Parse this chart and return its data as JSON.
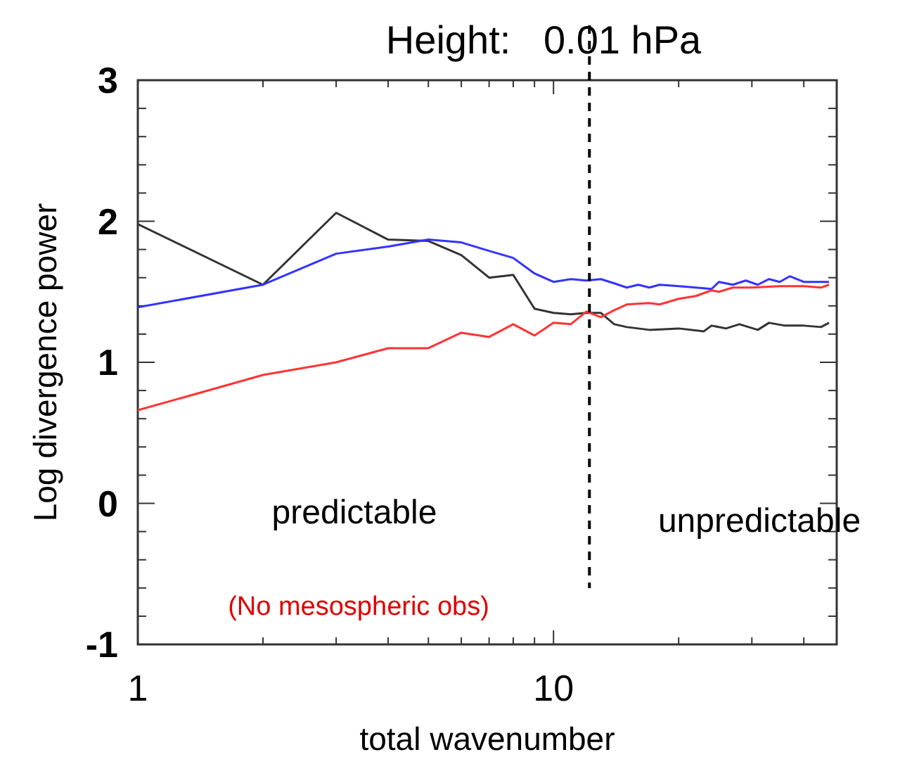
{
  "chart_data": {
    "type": "line",
    "title": "Height:   0.01 hPa",
    "xlabel": "total wavenumber",
    "ylabel": "Log divergence power",
    "log": "x",
    "grid": false,
    "marker": "none",
    "line_style": "solid",
    "xlim": [
      1,
      48
    ],
    "xticks": [
      1,
      {
        "value": 2,
        "label": null
      },
      {
        "value": 3,
        "label": null
      },
      {
        "value": 4,
        "label": null
      },
      {
        "value": 5,
        "label": null
      },
      {
        "value": 6,
        "label": null
      },
      {
        "value": 7,
        "label": null
      },
      {
        "value": 8,
        "label": null
      },
      {
        "value": 9,
        "label": null
      },
      10,
      {
        "value": 20,
        "label": null
      },
      {
        "value": 30,
        "label": null
      },
      {
        "value": 40,
        "label": null
      }
    ],
    "ylim": [
      -1,
      3
    ],
    "yticks": [
      -1,
      {
        "value": -0.8,
        "label": null
      },
      {
        "value": -0.6,
        "label": null
      },
      {
        "value": -0.4,
        "label": null
      },
      {
        "value": -0.2,
        "label": null
      },
      0,
      {
        "value": 0.2,
        "label": null
      },
      {
        "value": 0.4,
        "label": null
      },
      {
        "value": 0.6,
        "label": null
      },
      {
        "value": 0.8,
        "label": null
      },
      1,
      {
        "value": 1.2,
        "label": null
      },
      {
        "value": 1.4,
        "label": null
      },
      {
        "value": 1.6,
        "label": null
      },
      {
        "value": 1.8,
        "label": null
      },
      2,
      {
        "value": 2.2,
        "label": null
      },
      {
        "value": 2.4,
        "label": null
      },
      {
        "value": 2.6,
        "label": null
      },
      {
        "value": 2.8,
        "label": null
      },
      3
    ],
    "series": [
      {
        "color": "#333333",
        "x": [
          1,
          2,
          3,
          4,
          5,
          6,
          7,
          8,
          9,
          10,
          11,
          12,
          13,
          14,
          15,
          17,
          20,
          23,
          24,
          26,
          28,
          31,
          33,
          36,
          40,
          44,
          46
        ],
        "values": [
          1.98,
          1.55,
          2.06,
          1.87,
          1.86,
          1.76,
          1.6,
          1.62,
          1.38,
          1.35,
          1.34,
          1.35,
          1.35,
          1.27,
          1.25,
          1.23,
          1.24,
          1.22,
          1.26,
          1.24,
          1.27,
          1.23,
          1.28,
          1.26,
          1.26,
          1.25,
          1.28
        ]
      },
      {
        "color": "#3333ff",
        "x": [
          1,
          2,
          3,
          4,
          5,
          6,
          7,
          8,
          9,
          10,
          11,
          12,
          13,
          14,
          15,
          16,
          17,
          18,
          20,
          22,
          24,
          25,
          27,
          29,
          31,
          33,
          35,
          37,
          40,
          44,
          46
        ],
        "values": [
          1.39,
          1.55,
          1.77,
          1.82,
          1.87,
          1.85,
          1.79,
          1.74,
          1.63,
          1.57,
          1.59,
          1.58,
          1.59,
          1.56,
          1.53,
          1.55,
          1.53,
          1.55,
          1.54,
          1.53,
          1.52,
          1.57,
          1.55,
          1.58,
          1.55,
          1.59,
          1.57,
          1.61,
          1.57,
          1.57,
          1.57
        ]
      },
      {
        "color": "#ff3333",
        "x": [
          1,
          2,
          3,
          4,
          5,
          6,
          7,
          8,
          9,
          10,
          11,
          12,
          13,
          14,
          15,
          17,
          18,
          20,
          22,
          24,
          25,
          27,
          30,
          35,
          40,
          44,
          46
        ],
        "values": [
          0.66,
          0.91,
          1.0,
          1.1,
          1.1,
          1.21,
          1.18,
          1.27,
          1.19,
          1.28,
          1.27,
          1.36,
          1.32,
          1.37,
          1.41,
          1.42,
          1.41,
          1.45,
          1.47,
          1.51,
          1.5,
          1.53,
          1.53,
          1.54,
          1.54,
          1.53,
          1.55
        ]
      }
    ],
    "ref_lines": [
      {
        "axis": "x",
        "value": 12.2,
        "color": "#000000",
        "line_style": "dashed"
      }
    ],
    "annotations": [
      "predictable",
      "unpredictable",
      "(No mesospheric obs)"
    ]
  }
}
